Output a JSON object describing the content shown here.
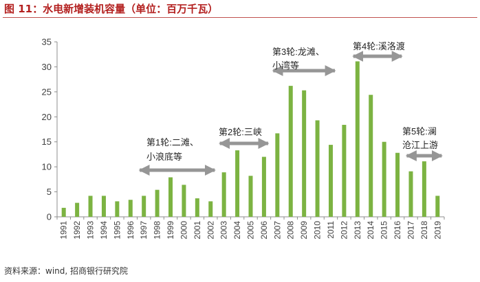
{
  "header": {
    "title": "图 11：水电新增装机容量（单位：百万千瓦）"
  },
  "footer": {
    "source": "资料来源：wind, 招商银行研究院"
  },
  "colors": {
    "bar": "#7cb342",
    "arrow": "#969696",
    "axis": "#8c8c8c",
    "title": "#b3201f"
  },
  "chart_data": {
    "type": "bar",
    "title": "水电新增装机容量（单位：百万千瓦）",
    "xlabel": "",
    "ylabel": "",
    "ylim": [
      0,
      35
    ],
    "yticks": [
      0,
      5,
      10,
      15,
      20,
      25,
      30,
      35
    ],
    "categories": [
      "1991",
      "1992",
      "1993",
      "1994",
      "1995",
      "1996",
      "1997",
      "1998",
      "1999",
      "2000",
      "2001",
      "2002",
      "2003",
      "2004",
      "2005",
      "2006",
      "2007",
      "2008",
      "2009",
      "2010",
      "2011",
      "2012",
      "2013",
      "2014",
      "2015",
      "2016",
      "2017",
      "2018",
      "2019"
    ],
    "values": [
      1.8,
      2.8,
      4.2,
      4.2,
      3.1,
      3.4,
      4.2,
      5.4,
      7.9,
      6.4,
      3.7,
      3.1,
      8.9,
      13.3,
      8.2,
      12.0,
      16.7,
      26.2,
      25.3,
      19.3,
      14.4,
      18.4,
      31.1,
      24.4,
      15.0,
      12.8,
      9.1,
      11.1,
      4.2
    ],
    "annotations": [
      {
        "lines": [
          "第1轮:二滩、",
          "小浪底等"
        ],
        "from": "1997",
        "to": "2002"
      },
      {
        "lines": [
          "第2轮:三峡"
        ],
        "from": "2003",
        "to": "2006"
      },
      {
        "lines": [
          "第3轮:龙滩、",
          "小湾等"
        ],
        "from": "2007",
        "to": "2011"
      },
      {
        "lines": [
          "第4轮:溪洛渡"
        ],
        "from": "2013",
        "to": "2016"
      },
      {
        "lines": [
          "第5轮:澜",
          "沧江上游"
        ],
        "from": "2017",
        "to": "2019"
      }
    ]
  }
}
